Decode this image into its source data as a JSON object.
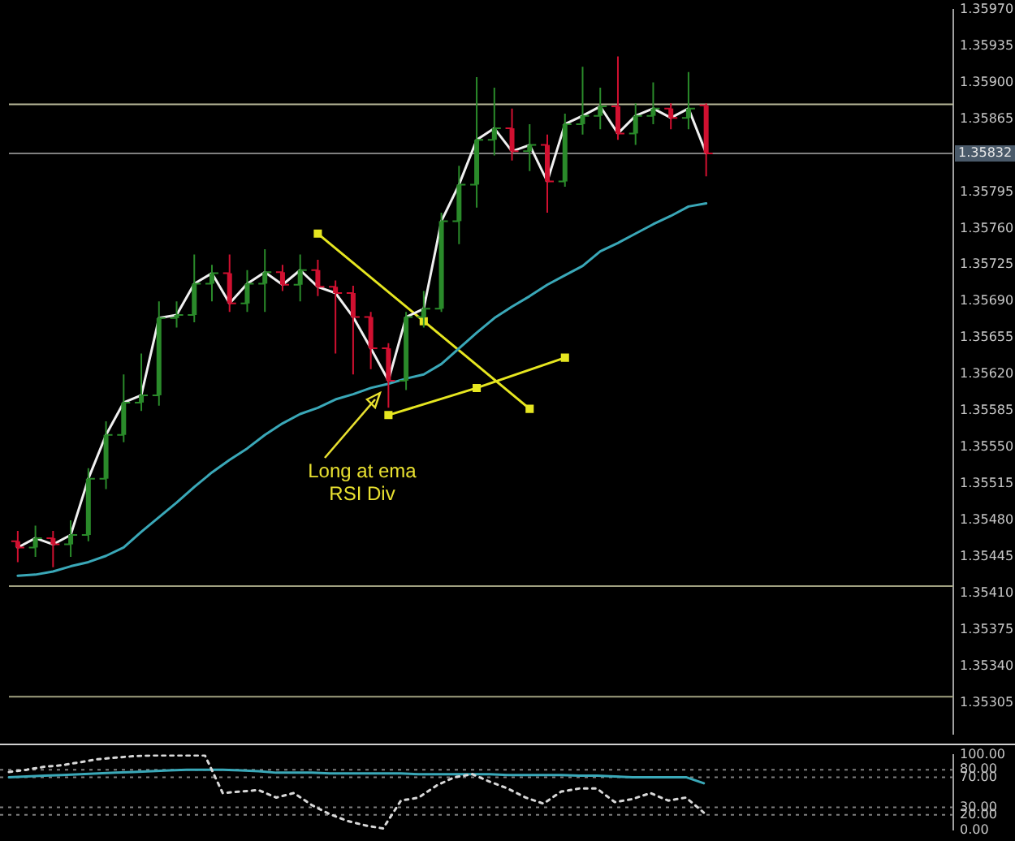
{
  "chart_data": [
    {
      "type": "candlestick",
      "categories": [
        null,
        null,
        null,
        null,
        null,
        null,
        null,
        null,
        null,
        null,
        null,
        null,
        null,
        null,
        null,
        null,
        null,
        null,
        null,
        null,
        null,
        null,
        null,
        null,
        null,
        null,
        null,
        null,
        null,
        null,
        null,
        null,
        null,
        null,
        null,
        null,
        null,
        null,
        null,
        null
      ],
      "ohlc": [
        [
          1.3546,
          1.3547,
          1.3544,
          1.35454
        ],
        [
          1.35454,
          1.35475,
          1.35445,
          1.35463
        ],
        [
          1.35463,
          1.3547,
          1.35435,
          1.35457
        ],
        [
          1.35457,
          1.3548,
          1.35445,
          1.35466
        ],
        [
          1.35466,
          1.3553,
          1.3546,
          1.3552
        ],
        [
          1.3552,
          1.35575,
          1.3551,
          1.35562
        ],
        [
          1.35562,
          1.3562,
          1.35555,
          1.35593
        ],
        [
          1.35593,
          1.3564,
          1.35585,
          1.356
        ],
        [
          1.356,
          1.3569,
          1.3559,
          1.35674
        ],
        [
          1.35674,
          1.3569,
          1.35665,
          1.35677
        ],
        [
          1.35677,
          1.35735,
          1.3567,
          1.35707
        ],
        [
          1.35707,
          1.35725,
          1.3569,
          1.35717
        ],
        [
          1.35717,
          1.35735,
          1.3568,
          1.35688
        ],
        [
          1.35688,
          1.3572,
          1.3568,
          1.35707
        ],
        [
          1.35707,
          1.3574,
          1.3568,
          1.35718
        ],
        [
          1.35718,
          1.35725,
          1.357,
          1.35706
        ],
        [
          1.35706,
          1.35735,
          1.3569,
          1.3572
        ],
        [
          1.3572,
          1.3573,
          1.35695,
          1.35704
        ],
        [
          1.35704,
          1.3571,
          1.3564,
          1.35698
        ],
        [
          1.35698,
          1.35705,
          1.3562,
          1.35675
        ],
        [
          1.35675,
          1.3568,
          1.35625,
          1.35645
        ],
        [
          1.35645,
          1.3565,
          1.35588,
          1.35614
        ],
        [
          1.35614,
          1.3568,
          1.35605,
          1.35675
        ],
        [
          1.35675,
          1.357,
          1.35665,
          1.35683
        ],
        [
          1.35683,
          1.35775,
          1.3568,
          1.35767
        ],
        [
          1.35767,
          1.3582,
          1.35745,
          1.35802
        ],
        [
          1.35802,
          1.35905,
          1.3578,
          1.35845
        ],
        [
          1.35845,
          1.35895,
          1.3583,
          1.35856
        ],
        [
          1.35856,
          1.35875,
          1.35825,
          1.35834
        ],
        [
          1.35834,
          1.3586,
          1.35815,
          1.3584
        ],
        [
          1.3584,
          1.3585,
          1.35775,
          1.35805
        ],
        [
          1.35805,
          1.3587,
          1.358,
          1.3586
        ],
        [
          1.3586,
          1.35915,
          1.3585,
          1.35868
        ],
        [
          1.35868,
          1.35895,
          1.35855,
          1.35877
        ],
        [
          1.35877,
          1.35925,
          1.35845,
          1.35851
        ],
        [
          1.35851,
          1.3588,
          1.3584,
          1.35868
        ],
        [
          1.35868,
          1.359,
          1.3586,
          1.35875
        ],
        [
          1.35875,
          1.3588,
          1.35855,
          1.35866
        ],
        [
          1.35866,
          1.3591,
          1.35855,
          1.35875
        ],
        [
          1.35878,
          1.3588,
          1.3581,
          1.35832
        ]
      ],
      "colors": [
        "#d01030",
        "#2a8a2a",
        "#d01030",
        "#2a8a2a",
        "#2a8a2a",
        "#2a8a2a",
        "#2a8a2a",
        "#2a8a2a",
        "#2a8a2a",
        "#2a8a2a",
        "#2a8a2a",
        "#2a8a2a",
        "#d01030",
        "#2a8a2a",
        "#2a8a2a",
        "#d01030",
        "#2a8a2a",
        "#d01030",
        "#d01030",
        "#d01030",
        "#d01030",
        "#d01030",
        "#2a8a2a",
        "#2a8a2a",
        "#2a8a2a",
        "#2a8a2a",
        "#2a8a2a",
        "#2a8a2a",
        "#d01030",
        "#2a8a2a",
        "#d01030",
        "#2a8a2a",
        "#2a8a2a",
        "#2a8a2a",
        "#d01030",
        "#2a8a2a",
        "#2a8a2a",
        "#d01030",
        "#2a8a2a",
        "#d01030"
      ],
      "series": [
        {
          "type": "line",
          "color": "#f0f0f0",
          "marker": "none",
          "values": [
            1.35454,
            1.35463,
            1.35457,
            1.35466,
            1.3552,
            1.35562,
            1.35593,
            1.356,
            1.35674,
            1.35677,
            1.35707,
            1.35717,
            1.35688,
            1.35707,
            1.35718,
            1.35706,
            1.3572,
            1.35704,
            1.35698,
            1.35675,
            1.35645,
            1.35614,
            1.35675,
            1.35683,
            1.35767,
            1.35802,
            1.35845,
            1.35856,
            1.35834,
            1.3584,
            1.35805,
            1.3586,
            1.35868,
            1.35877,
            1.35851,
            1.35868,
            1.35875,
            1.35866,
            1.35875,
            1.35832
          ]
        },
        {
          "type": "line",
          "color": "#3aa8b8",
          "marker": "none",
          "values": [
            1.35427,
            1.35428,
            1.35431,
            1.35436,
            1.3544,
            1.35446,
            1.35454,
            1.35469,
            1.35483,
            1.35497,
            1.35512,
            1.35526,
            1.35538,
            1.35549,
            1.35562,
            1.35573,
            1.35582,
            1.35588,
            1.35596,
            1.35601,
            1.35607,
            1.35611,
            1.35616,
            1.3562,
            1.3563,
            1.35645,
            1.3566,
            1.35674,
            1.35685,
            1.35695,
            1.35706,
            1.35715,
            1.35724,
            1.35738,
            1.35746,
            1.35755,
            1.35764,
            1.35772,
            1.35781,
            1.35784
          ]
        },
        {
          "type": "line",
          "color": "#e6e620",
          "marker": "square",
          "values": [
            null,
            null,
            null,
            null,
            null,
            null,
            null,
            null,
            null,
            null,
            null,
            null,
            null,
            null,
            null,
            null,
            null,
            1.35755,
            null,
            null,
            null,
            null,
            null,
            1.35671,
            null,
            null,
            null,
            null,
            null,
            1.35587,
            null,
            null,
            null,
            null,
            null,
            null,
            null,
            null,
            null,
            null
          ]
        },
        {
          "type": "line",
          "color": "#e6e620",
          "marker": "square",
          "values": [
            null,
            null,
            null,
            null,
            null,
            null,
            null,
            null,
            null,
            null,
            null,
            null,
            null,
            null,
            null,
            null,
            null,
            null,
            null,
            null,
            null,
            1.35581,
            null,
            null,
            null,
            null,
            1.35607,
            null,
            null,
            null,
            null,
            1.35636,
            null,
            null,
            null,
            null,
            null,
            null,
            null,
            null
          ]
        }
      ],
      "ylim": [
        1.35275,
        1.3597
      ],
      "yticks": [
        {
          "value": 1.3597,
          "label": "1.35970"
        },
        {
          "value": 1.35935,
          "label": "1.35935"
        },
        {
          "value": 1.359,
          "label": "1.35900"
        },
        {
          "value": 1.35865,
          "label": "1.35865"
        },
        {
          "value": 1.35795,
          "label": "1.35795"
        },
        {
          "value": 1.3576,
          "label": "1.35760"
        },
        {
          "value": 1.35725,
          "label": "1.35725"
        },
        {
          "value": 1.3569,
          "label": "1.35690"
        },
        {
          "value": 1.35655,
          "label": "1.35655"
        },
        {
          "value": 1.3562,
          "label": "1.35620"
        },
        {
          "value": 1.35585,
          "label": "1.35585"
        },
        {
          "value": 1.3555,
          "label": "1.35550"
        },
        {
          "value": 1.35515,
          "label": "1.35515"
        },
        {
          "value": 1.3548,
          "label": "1.35480"
        },
        {
          "value": 1.35445,
          "label": "1.35445"
        },
        {
          "value": 1.3541,
          "label": "1.35410"
        },
        {
          "value": 1.35375,
          "label": "1.35375"
        },
        {
          "value": 1.3534,
          "label": "1.35340"
        },
        {
          "value": 1.35305,
          "label": "1.35305"
        }
      ],
      "tick_labels": "y",
      "grid": false,
      "ref_lines": [
        {
          "axis": "y",
          "value": 1.35879,
          "color": "#b8b898",
          "line_style": "solid"
        },
        {
          "axis": "y",
          "value": 1.35832,
          "label": "1.35832",
          "color": "#808080",
          "line_style": "solid"
        },
        {
          "axis": "y",
          "value": 1.35417,
          "color": "#a0a080",
          "line_style": "solid"
        },
        {
          "axis": "y",
          "value": 1.35311,
          "color": "#a0a080",
          "line_style": "solid"
        }
      ],
      "annotations": [
        "Long at ema\nRSI Div"
      ]
    },
    {
      "type": "line",
      "categories": [
        null,
        null,
        null,
        null,
        null,
        null,
        null,
        null,
        null,
        null,
        null,
        null,
        null,
        null,
        null,
        null,
        null,
        null,
        null,
        null,
        null,
        null,
        null,
        null,
        null,
        null,
        null,
        null,
        null,
        null,
        null,
        null,
        null,
        null,
        null,
        null,
        null,
        null,
        null,
        null
      ],
      "series": [
        {
          "color": "#d8d8d8",
          "line_style": "dotted",
          "values": [
            77,
            80,
            84,
            86,
            90,
            94,
            96,
            98,
            99,
            99,
            99,
            99,
            49,
            51,
            53,
            43,
            49,
            33,
            21,
            12,
            6,
            2,
            39,
            43,
            59,
            70,
            74,
            64,
            55,
            43,
            35,
            51,
            55,
            55,
            37,
            41,
            49,
            39,
            43,
            23
          ]
        },
        {
          "color": "#3aa8b8",
          "line_style": "solid",
          "values": [
            70,
            71,
            72,
            73,
            74,
            75,
            76,
            77,
            78,
            79,
            80,
            80,
            80,
            79,
            78,
            76,
            76,
            76,
            75,
            75,
            75,
            75,
            75,
            74,
            74,
            74,
            74,
            74,
            73,
            73,
            73,
            73,
            72,
            72,
            71,
            70,
            70,
            70,
            70,
            62
          ]
        }
      ],
      "ylim": [
        0,
        100
      ],
      "yticks": [
        {
          "value": 0,
          "label": "0.00"
        },
        {
          "value": 20,
          "label": "20.00"
        },
        {
          "value": 30,
          "label": "30.00"
        },
        {
          "value": 70,
          "label": "70.00"
        },
        {
          "value": 80,
          "label": "80.00"
        },
        {
          "value": 100,
          "label": "100.00"
        }
      ],
      "tick_labels": "y",
      "grid": false,
      "ref_lines": [
        {
          "axis": "y",
          "value": 20,
          "color": "#808080",
          "line_style": "dotted"
        },
        {
          "axis": "y",
          "value": 30,
          "color": "#808080",
          "line_style": "dotted"
        },
        {
          "axis": "y",
          "value": 70,
          "color": "#808080",
          "line_style": "dotted"
        },
        {
          "axis": "y",
          "value": 80,
          "color": "#808080",
          "line_style": "dotted"
        }
      ]
    }
  ]
}
